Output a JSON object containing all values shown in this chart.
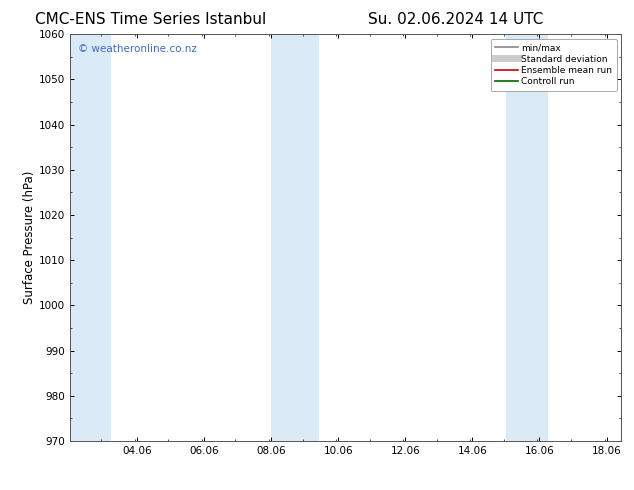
{
  "title_left": "CMC-ENS Time Series Istanbul",
  "title_right": "Su. 02.06.2024 14 UTC",
  "ylabel": "Surface Pressure (hPa)",
  "ylim": [
    970,
    1060
  ],
  "yticks": [
    970,
    980,
    990,
    1000,
    1010,
    1020,
    1030,
    1040,
    1050,
    1060
  ],
  "xlim_start": 2.06,
  "xlim_end": 18.5,
  "xticks": [
    4.06,
    6.06,
    8.06,
    10.06,
    12.06,
    14.06,
    16.06,
    18.06
  ],
  "xticklabels": [
    "04.06",
    "06.06",
    "08.06",
    "10.06",
    "12.06",
    "14.06",
    "16.06",
    "18.06"
  ],
  "shaded_bands": [
    {
      "x_start": 2.06,
      "x_end": 3.3
    },
    {
      "x_start": 8.06,
      "x_end": 9.5
    },
    {
      "x_start": 15.06,
      "x_end": 16.3
    }
  ],
  "band_color": "#daeaf7",
  "background_color": "#ffffff",
  "plot_bg_color": "#ffffff",
  "watermark_text": "© weatheronline.co.nz",
  "watermark_color": "#4169c8",
  "legend_items": [
    {
      "label": "min/max",
      "color": "#888888",
      "lw": 1.2,
      "style": "solid"
    },
    {
      "label": "Standard deviation",
      "color": "#cccccc",
      "lw": 5,
      "style": "solid"
    },
    {
      "label": "Ensemble mean run",
      "color": "#cc0000",
      "lw": 1.2,
      "style": "solid"
    },
    {
      "label": "Controll run",
      "color": "#006600",
      "lw": 1.2,
      "style": "solid"
    }
  ],
  "title_fontsize": 11,
  "tick_fontsize": 7.5,
  "label_fontsize": 8.5,
  "watermark_fontsize": 7.5
}
